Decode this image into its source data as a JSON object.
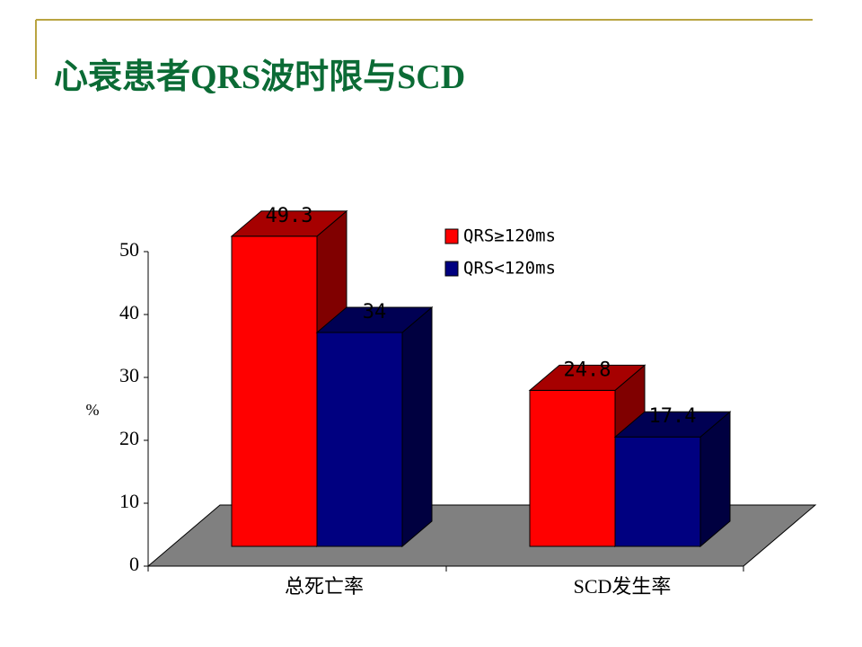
{
  "chart_data": {
    "type": "bar3d",
    "title": "心衰患者QRS波时限与SCD",
    "y_label": "%",
    "categories": [
      "总死亡率",
      "SCD发生率"
    ],
    "series": [
      {
        "name": "QRS≥120ms",
        "color": "#ff0000",
        "values": [
          49.3,
          24.8
        ]
      },
      {
        "name": "QRS<120ms",
        "color": "#000080",
        "values": [
          34,
          17.4
        ]
      }
    ],
    "ylim": [
      0,
      50
    ],
    "yticks": [
      0,
      10,
      20,
      30,
      40,
      50
    ],
    "grid": false,
    "legend": "top-right"
  }
}
